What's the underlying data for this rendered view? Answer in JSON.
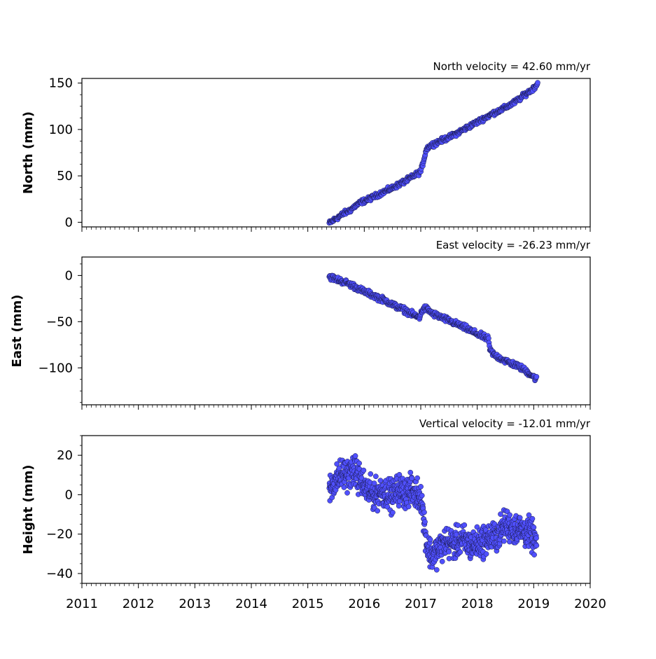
{
  "chart_data": [
    {
      "type": "scatter",
      "title": "North velocity = 42.60 mm/yr",
      "xlabel": "",
      "ylabel": "North (mm)",
      "xlim": [
        2011,
        2020
      ],
      "ylim": [
        -5,
        155
      ],
      "yticks": [
        0,
        50,
        100,
        150
      ],
      "ytick_labels": [
        "0",
        "50",
        "100",
        "150"
      ],
      "grid": false,
      "series": [
        {
          "x": [
            2015.38,
            2015.45,
            2015.55,
            2015.65,
            2015.75,
            2015.85,
            2015.95,
            2016.05,
            2016.15,
            2016.25,
            2016.35,
            2016.5,
            2016.65,
            2016.8,
            2016.9,
            2016.96,
            2017.0,
            2017.02,
            2017.1,
            2017.15,
            2017.25,
            2017.4,
            2017.55,
            2017.7,
            2017.85,
            2018.0,
            2018.15,
            2018.3,
            2018.45,
            2018.6,
            2018.75,
            2018.85,
            2018.95,
            2019.02,
            2019.07
          ],
          "y": [
            -1,
            2,
            6,
            10,
            13,
            18,
            22,
            24,
            27,
            30,
            33,
            37,
            42,
            47,
            51,
            53,
            55,
            59,
            79,
            82,
            85,
            89,
            93,
            98,
            103,
            108,
            113,
            118,
            122,
            127,
            133,
            138,
            142,
            146,
            150
          ]
        }
      ]
    },
    {
      "type": "scatter",
      "title": "East velocity = -26.23 mm/yr",
      "xlabel": "",
      "ylabel": "East (mm)",
      "xlim": [
        2011,
        2020
      ],
      "ylim": [
        -140,
        20
      ],
      "yticks": [
        0,
        -50,
        -100
      ],
      "ytick_labels": [
        "0",
        "−50",
        "−100"
      ],
      "grid": false,
      "series": [
        {
          "x": [
            2015.38,
            2015.5,
            2015.65,
            2015.8,
            2015.95,
            2016.1,
            2016.25,
            2016.4,
            2016.55,
            2016.7,
            2016.85,
            2016.97,
            2017.05,
            2017.1,
            2017.2,
            2017.35,
            2017.5,
            2017.65,
            2017.8,
            2017.95,
            2018.1,
            2018.2,
            2018.22,
            2018.3,
            2018.45,
            2018.6,
            2018.75,
            2018.9,
            2019.0,
            2019.05
          ],
          "y": [
            -1,
            -4,
            -7,
            -11,
            -16,
            -20,
            -24,
            -28,
            -33,
            -37,
            -42,
            -46,
            -35,
            -36,
            -41,
            -45,
            -49,
            -53,
            -57,
            -62,
            -66,
            -69,
            -80,
            -86,
            -91,
            -95,
            -99,
            -105,
            -110,
            -112
          ]
        }
      ]
    },
    {
      "type": "scatter",
      "title": "Vertical velocity = -12.01 mm/yr",
      "xlabel": "",
      "ylabel": "Height (mm)",
      "xlim": [
        2011,
        2020
      ],
      "ylim": [
        -45,
        30
      ],
      "yticks": [
        20,
        0,
        -20,
        -40
      ],
      "ytick_labels": [
        "20",
        "0",
        "−20",
        "−40"
      ],
      "xticks": [
        2011,
        2012,
        2013,
        2014,
        2015,
        2016,
        2017,
        2018,
        2019,
        2020
      ],
      "xtick_labels": [
        "2011",
        "2012",
        "2013",
        "2014",
        "2015",
        "2016",
        "2017",
        "2018",
        "2019",
        "2020"
      ],
      "grid": false,
      "series": [
        {
          "x": [
            2015.38,
            2015.45,
            2015.55,
            2015.65,
            2015.75,
            2015.8,
            2015.9,
            2016.0,
            2016.1,
            2016.2,
            2016.3,
            2016.4,
            2016.5,
            2016.6,
            2016.7,
            2016.8,
            2016.9,
            2017.0,
            2017.05,
            2017.12,
            2017.2,
            2017.3,
            2017.45,
            2017.6,
            2017.75,
            2017.9,
            2018.05,
            2018.2,
            2018.35,
            2018.5,
            2018.65,
            2018.8,
            2018.95,
            2019.05
          ],
          "y": [
            2,
            6,
            9,
            11,
            10,
            13,
            9,
            4,
            1,
            0,
            2,
            1,
            -1,
            3,
            1,
            2,
            1,
            0,
            -12,
            -27,
            -31,
            -28,
            -24,
            -25,
            -23,
            -26,
            -24,
            -22,
            -21,
            -15,
            -17,
            -18,
            -20,
            -25
          ]
        }
      ]
    }
  ],
  "style": {
    "marker_fill": "#5050ff",
    "marker_edge": "#1a1a4a",
    "axis_color": "#000000"
  }
}
